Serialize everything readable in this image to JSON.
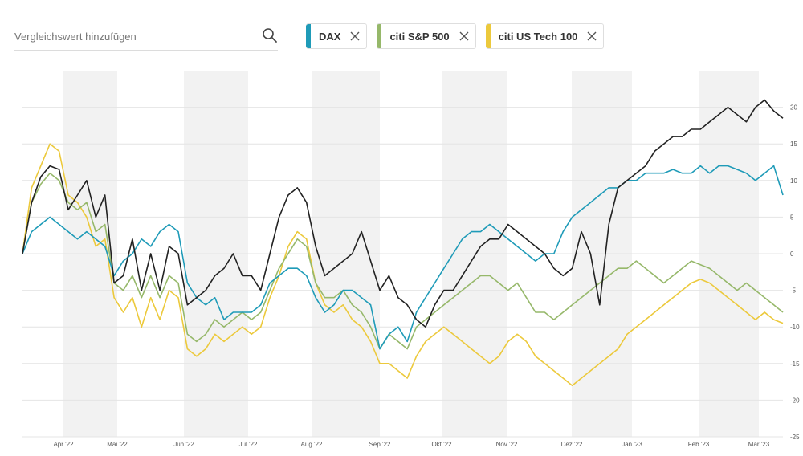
{
  "search": {
    "placeholder": "Vergleichswert hinzufügen",
    "icon": "search-icon"
  },
  "legend": [
    {
      "label": "DAX",
      "color": "#1f9bb8"
    },
    {
      "label": "citi S&P 500",
      "color": "#96b86a"
    },
    {
      "label": "citi US Tech 100",
      "color": "#ecc93c"
    }
  ],
  "chart_data": {
    "type": "line",
    "xlabel": "",
    "ylabel": "",
    "ylim": [
      -25,
      25
    ],
    "yticks": [
      20,
      15,
      10,
      5,
      0,
      -5,
      -10,
      -15,
      -20,
      -25
    ],
    "xtick_labels": [
      "Apr '22",
      "Mai '22",
      "Jun '22",
      "Jul '22",
      "Aug '22",
      "Sep '22",
      "Okt '22",
      "Nov '22",
      "Dez '22",
      "Jan '23",
      "Feb '23",
      "Mär '23"
    ],
    "grid": true,
    "shaded_months": [
      "Apr '22",
      "Jun '22",
      "Aug '22",
      "Okt '22",
      "Dez '22",
      "Feb '23"
    ],
    "series": [
      {
        "name": "",
        "color": "#222222",
        "values": [
          0,
          7,
          10.5,
          12,
          11.5,
          6,
          8,
          10,
          5,
          8,
          -4,
          -3,
          2,
          -5,
          0,
          -5,
          1,
          0,
          -7,
          -6,
          -5,
          -3,
          -2,
          0,
          -3,
          -3,
          -5,
          0,
          5,
          8,
          9,
          7,
          1,
          -3,
          -2,
          -1,
          0,
          3,
          -1,
          -5,
          -3,
          -6,
          -7,
          -9,
          -10,
          -7,
          -5,
          -5,
          -3,
          -1,
          1,
          2,
          2,
          4,
          3,
          2,
          1,
          0,
          -2,
          -3,
          -2,
          3,
          0,
          -7,
          4,
          9,
          10,
          11,
          12,
          14,
          15,
          16,
          16,
          17,
          17,
          18,
          19,
          20,
          19,
          18,
          20,
          21,
          19.5,
          18.5
        ]
      },
      {
        "name": "DAX",
        "color": "#1f9bb8",
        "values": [
          0,
          3,
          4,
          5,
          4,
          3,
          2,
          3,
          2,
          1,
          -3,
          -1,
          0,
          2,
          1,
          3,
          4,
          3,
          -4,
          -6,
          -7,
          -6,
          -9,
          -8,
          -8,
          -8,
          -7,
          -4,
          -3,
          -2,
          -2,
          -3,
          -6,
          -8,
          -7,
          -5,
          -5,
          -6,
          -7,
          -13,
          -11,
          -10,
          -12,
          -8,
          -6,
          -4,
          -2,
          0,
          2,
          3,
          3,
          4,
          3,
          2,
          1,
          0,
          -1,
          0,
          0,
          3,
          5,
          6,
          7,
          8,
          9,
          9,
          10,
          10,
          11,
          11,
          11,
          11.5,
          11,
          11,
          12,
          11,
          12,
          12,
          11.5,
          11,
          10,
          11,
          12,
          8
        ]
      },
      {
        "name": "citi S&P 500",
        "color": "#96b86a",
        "values": [
          0,
          7,
          9.5,
          11,
          10,
          7,
          6,
          7,
          3,
          4,
          -4,
          -5,
          -3,
          -6,
          -3,
          -6,
          -3,
          -4,
          -11,
          -12,
          -11,
          -9,
          -10,
          -9,
          -8,
          -9,
          -8,
          -5,
          -2,
          0,
          2,
          1,
          -4,
          -6,
          -6,
          -5,
          -7,
          -8,
          -10,
          -13,
          -11,
          -12,
          -13,
          -10,
          -9,
          -8,
          -7,
          -6,
          -5,
          -4,
          -3,
          -3,
          -4,
          -5,
          -4,
          -6,
          -8,
          -8,
          -9,
          -8,
          -7,
          -6,
          -5,
          -4,
          -3,
          -2,
          -2,
          -1,
          -2,
          -3,
          -4,
          -3,
          -2,
          -1,
          -1.5,
          -2,
          -3,
          -4,
          -5,
          -4,
          -5,
          -6,
          -7,
          -8
        ]
      },
      {
        "name": "citi US Tech 100",
        "color": "#ecc93c",
        "values": [
          0,
          9,
          12,
          15,
          14,
          8,
          7,
          5,
          1,
          2,
          -6,
          -8,
          -6,
          -10,
          -6,
          -9,
          -5,
          -6,
          -13,
          -14,
          -13,
          -11,
          -12,
          -11,
          -10,
          -11,
          -10,
          -6,
          -3,
          1,
          3,
          2,
          -4,
          -7,
          -8,
          -7,
          -9,
          -10,
          -12,
          -15,
          -15,
          -16,
          -17,
          -14,
          -12,
          -11,
          -10,
          -11,
          -12,
          -13,
          -14,
          -15,
          -14,
          -12,
          -11,
          -12,
          -14,
          -15,
          -16,
          -17,
          -18,
          -17,
          -16,
          -15,
          -14,
          -13,
          -11,
          -10,
          -9,
          -8,
          -7,
          -6,
          -5,
          -4,
          -3.5,
          -4,
          -5,
          -6,
          -7,
          -8,
          -9,
          -8,
          -9,
          -9.5
        ]
      }
    ]
  }
}
